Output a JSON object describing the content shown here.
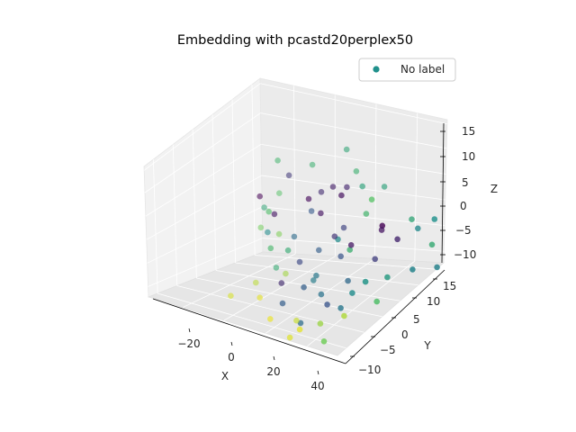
{
  "chart_data": {
    "type": "scatter",
    "projection": "3d",
    "title": "Embedding with pcastd20perplex50",
    "xlabel": "X",
    "ylabel": "Y",
    "zlabel": "Z",
    "grid": true,
    "legend": {
      "position": "top-right",
      "entries": [
        "No label"
      ],
      "marker_color": "#21918c"
    },
    "xlim": [
      -35,
      45
    ],
    "ylim": [
      -13,
      17
    ],
    "zlim": [
      -12,
      16
    ],
    "x_ticks": [
      "−20",
      "0",
      "20",
      "40"
    ],
    "y_ticks": [
      "−10",
      "−5",
      "0",
      "5",
      "10",
      "15"
    ],
    "z_ticks": [
      "−10",
      "−5",
      "0",
      "5",
      "10",
      "15"
    ],
    "colormap": "viridis",
    "series": [
      {
        "name": "No label",
        "points": [
          [
            -27,
            0.5,
            -9,
            0.9
          ],
          [
            -27,
            -7,
            -7,
            0.94
          ],
          [
            -18,
            -4,
            -8,
            0.96
          ],
          [
            -10,
            -6,
            -10,
            0.97
          ],
          [
            -4,
            -2,
            -12,
            0.92
          ],
          [
            4,
            -9,
            -10,
            0.95
          ],
          [
            -20,
            5,
            -9,
            0.86
          ],
          [
            -33,
            6,
            -2,
            0.78
          ],
          [
            -32,
            11,
            2,
            0.72
          ],
          [
            -26,
            7,
            -3,
            0.8
          ],
          [
            -25,
            3,
            0,
            0.48
          ],
          [
            -12,
            11,
            5,
            0.12
          ],
          [
            -14,
            4,
            0,
            0.35
          ],
          [
            -6,
            7,
            4,
            0.05
          ],
          [
            -3,
            13,
            6,
            0.1
          ],
          [
            1,
            1,
            -4,
            0.4
          ],
          [
            -9,
            -1,
            1,
            0.62
          ],
          [
            -14,
            -3,
            2,
            0.68
          ],
          [
            -21,
            1,
            6,
            0.7
          ],
          [
            -26,
            7,
            12,
            0.66
          ],
          [
            -16,
            11,
            10,
            0.64
          ],
          [
            -6,
            15,
            12,
            0.6
          ],
          [
            6,
            12,
            8,
            0.58
          ],
          [
            14,
            8,
            6,
            0.66
          ],
          [
            20,
            6,
            11,
            0.72
          ],
          [
            22,
            -2,
            6,
            0.64
          ],
          [
            13,
            4,
            2,
            0.06
          ],
          [
            2,
            6,
            1,
            0.15
          ],
          [
            0,
            10,
            0,
            0.2
          ],
          [
            -8,
            12,
            6,
            0.08
          ],
          [
            -4,
            5,
            -2,
            0.3
          ],
          [
            8,
            4,
            -1,
            0.26
          ],
          [
            16,
            1,
            -3,
            0.34
          ],
          [
            26,
            -4,
            -1,
            0.48
          ],
          [
            34,
            -5,
            3,
            0.52
          ],
          [
            38,
            -1,
            2,
            0.55
          ],
          [
            42,
            4,
            1,
            0.45
          ],
          [
            40,
            12,
            6,
            0.5
          ],
          [
            32,
            12,
            3,
            0.47
          ],
          [
            27,
            9,
            2,
            0.1
          ],
          [
            21,
            6,
            -1,
            0.18
          ],
          [
            14,
            -4,
            -5,
            0.26
          ],
          [
            8,
            -2,
            -5,
            0.38
          ],
          [
            3,
            -4,
            -3,
            0.3
          ],
          [
            -2,
            2,
            -6,
            0.42
          ],
          [
            -10,
            3,
            -4,
            0.22
          ],
          [
            -18,
            1,
            -5,
            0.62
          ],
          [
            -14,
            0,
            -7,
            0.12
          ],
          [
            22,
            -5,
            -4,
            0.4
          ],
          [
            17,
            -8,
            -6,
            0.85
          ],
          [
            12,
            -11,
            -6,
            0.96
          ],
          [
            30,
            -9,
            -2,
            0.88
          ],
          [
            25,
            -12,
            -6,
            0.78
          ],
          [
            36,
            -3,
            -2,
            0.7
          ],
          [
            44,
            10,
            -2,
            0.44
          ],
          [
            45,
            8,
            4,
            0.62
          ],
          [
            34,
            9,
            7,
            0.6
          ],
          [
            28,
            4,
            8,
            0.0
          ],
          [
            4,
            7,
            9,
            0.04
          ],
          [
            -10,
            6,
            7,
            0.02
          ],
          [
            -20,
            2,
            5,
            0.06
          ],
          [
            -28,
            4,
            4,
            0.6
          ],
          [
            -24,
            9,
            8,
            0.16
          ],
          [
            -4,
            -6,
            -6,
            0.3
          ],
          [
            6,
            -7,
            -8,
            0.36
          ],
          [
            0,
            14,
            9,
            0.64
          ],
          [
            10,
            16,
            6,
            0.58
          ],
          [
            -30,
            4,
            6,
            0.0
          ],
          [
            -12,
            8,
            3,
            0.28
          ],
          [
            18,
            10,
            2,
            0.05
          ],
          [
            10,
            2,
            4,
            0.48
          ]
        ]
      }
    ]
  }
}
